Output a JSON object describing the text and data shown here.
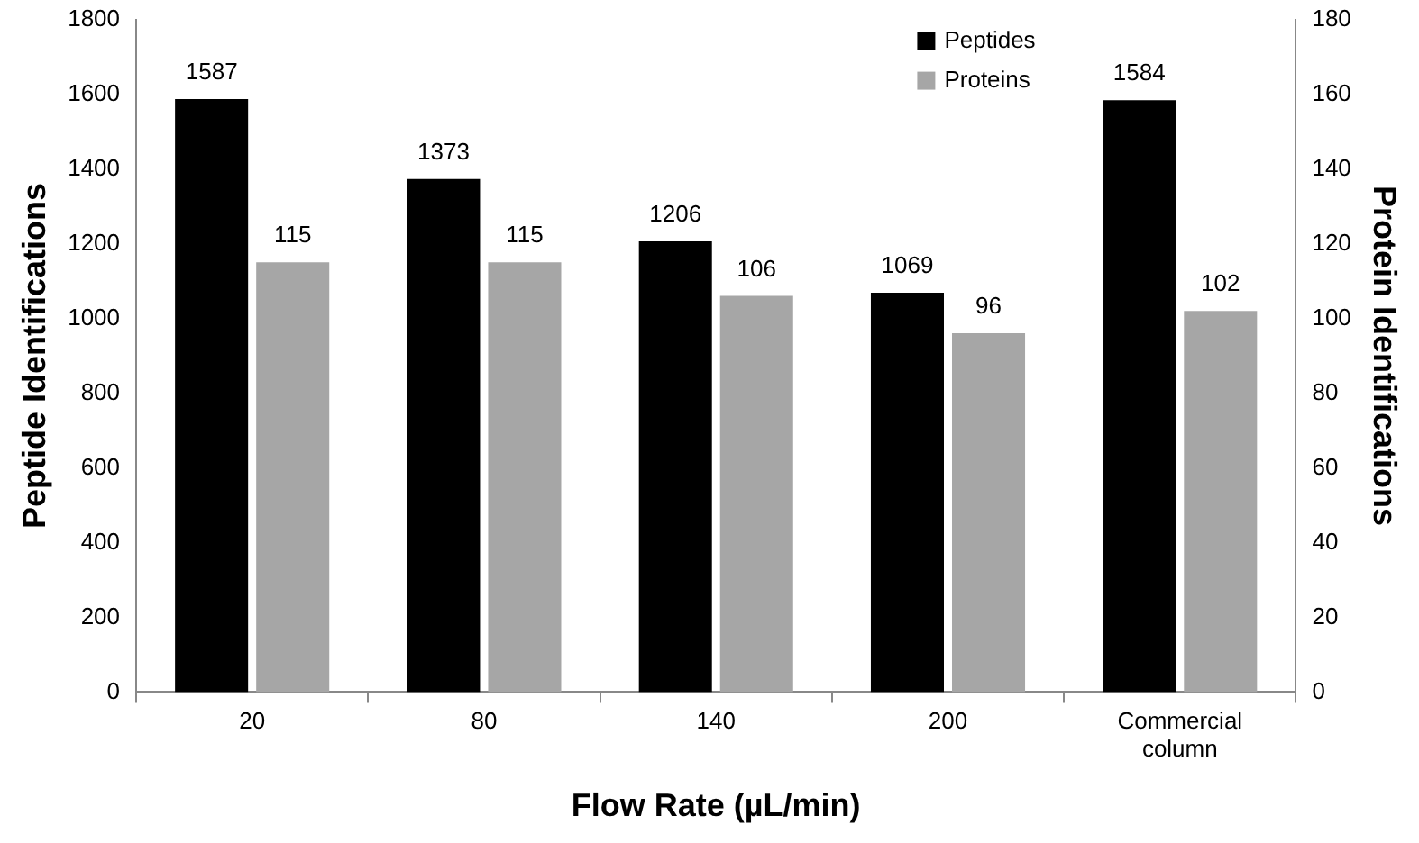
{
  "chart_data": {
    "type": "bar",
    "xlabel": "Flow Rate (µL/min)",
    "ylabel": "Peptide Identifications",
    "y2label": "Protein Identifications",
    "categories": [
      "20",
      "80",
      "140",
      "200",
      "Commercial column"
    ],
    "series": [
      {
        "name": "Peptides",
        "color": "#000000",
        "values": [
          1587,
          1373,
          1206,
          1069,
          1584
        ]
      },
      {
        "name": "Proteins",
        "color": "#a6a6a6",
        "values": [
          115,
          115,
          106,
          96,
          102
        ],
        "axis": "y2"
      }
    ],
    "ylim": [
      0,
      1800
    ],
    "yticks": [
      0,
      200,
      400,
      600,
      800,
      1000,
      1200,
      1400,
      1600,
      1800
    ],
    "y2lim": [
      0,
      180
    ],
    "y2ticks": [
      0,
      20,
      40,
      60,
      80,
      100,
      120,
      140,
      160,
      180
    ],
    "data_labels": true,
    "grid": false,
    "legend": "top right"
  }
}
